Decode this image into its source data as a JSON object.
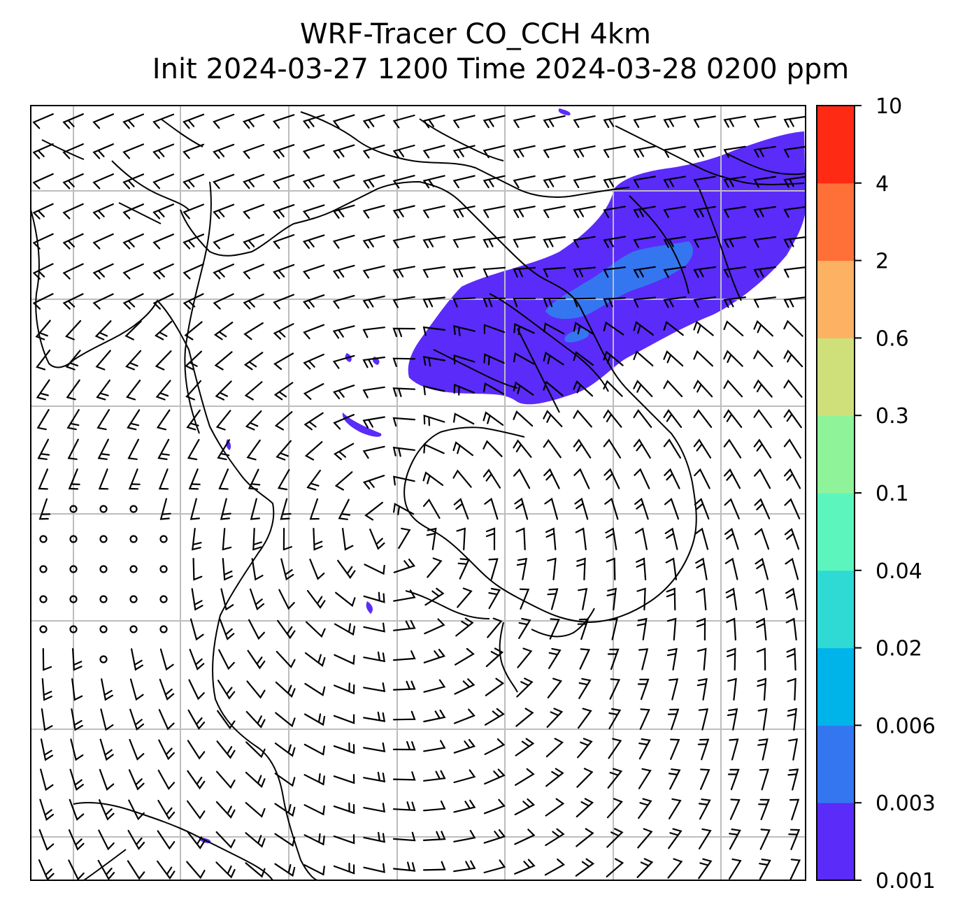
{
  "title": {
    "line1": "WRF-Tracer CO_CCH 4km",
    "line2": "Init 2024-03-27 1200 Time 2024-03-28 0200 ppm"
  },
  "colorbar": {
    "levels": [
      "0.001",
      "0.003",
      "0.006",
      "0.02",
      "0.04",
      "0.1",
      "0.3",
      "0.6",
      "2",
      "4",
      "10"
    ],
    "colors": [
      "#5b2bfa",
      "#3476f0",
      "#00b4ea",
      "#2fd9d4",
      "#5cf5bd",
      "#8ff39a",
      "#cfe07a",
      "#fdb163",
      "#ff7038",
      "#ff2a14"
    ]
  },
  "map": {
    "gridline_color": "#bdbdbd",
    "frame_color": "#000000",
    "wind_barb_color": "#000000",
    "coastline_color": "#000000"
  }
}
